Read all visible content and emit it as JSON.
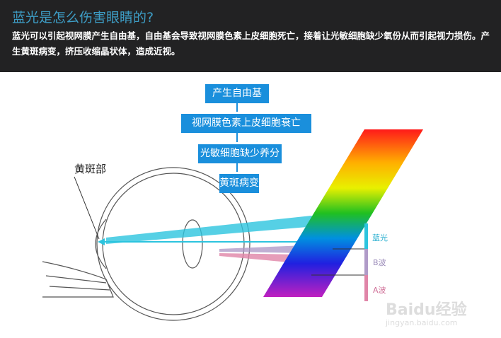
{
  "header": {
    "title": "蓝光是怎么伤害眼睛的?",
    "description": "蓝光可以引起视网膜产生自由基，自由基会导致视网膜色素上皮细胞死亡，接着让光敏细胞缺少氧份从而引起视力损伤。产生黄斑病变，挤压收缩晶状体，造成近视。"
  },
  "flow": [
    "产生自由基",
    "视网膜色素上皮细胞衰亡",
    "光敏细胞缺少养分",
    "黄斑病变"
  ],
  "eye": {
    "label": "黄斑部"
  },
  "spectrum": {
    "labels": [
      "蓝光",
      "B波",
      "A波"
    ],
    "colors": {
      "blue_light": "#2cc4de",
      "b_wave": "#b09bc8",
      "a_wave": "#e085a8"
    }
  },
  "watermark": {
    "brand": "Baidu经验",
    "url": "jingyan.baidu.com"
  }
}
